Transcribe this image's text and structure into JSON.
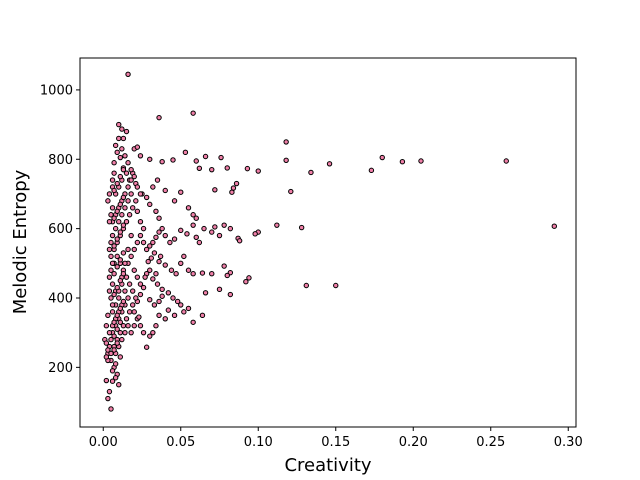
{
  "chart_data": {
    "type": "scatter",
    "title": "",
    "xlabel": "Creativity",
    "ylabel": "Melodic Entropy",
    "xlim": [
      -0.015,
      0.305
    ],
    "ylim": [
      28,
      1092
    ],
    "xticks": [
      0.0,
      0.05,
      0.1,
      0.15,
      0.2,
      0.25,
      0.3
    ],
    "xtick_labels": [
      "0.00",
      "0.05",
      "0.10",
      "0.15",
      "0.20",
      "0.25",
      "0.30"
    ],
    "yticks": [
      200,
      400,
      600,
      800,
      1000
    ],
    "ytick_labels": [
      "200",
      "400",
      "600",
      "800",
      "1000"
    ],
    "grid": false,
    "legend": "none",
    "marker_face_color": "#f07fa8",
    "marker_edge_color": "#000000",
    "points": [
      [
        0.016,
        1045
      ],
      [
        0.058,
        933
      ],
      [
        0.036,
        920
      ],
      [
        0.118,
        850
      ],
      [
        0.18,
        805
      ],
      [
        0.205,
        795
      ],
      [
        0.26,
        795
      ],
      [
        0.193,
        793
      ],
      [
        0.146,
        787
      ],
      [
        0.134,
        762
      ],
      [
        0.173,
        768
      ],
      [
        0.118,
        797
      ],
      [
        0.121,
        707
      ],
      [
        0.1,
        766
      ],
      [
        0.093,
        773
      ],
      [
        0.291,
        607
      ],
      [
        0.128,
        603
      ],
      [
        0.112,
        610
      ],
      [
        0.1,
        590
      ],
      [
        0.098,
        585
      ],
      [
        0.131,
        436
      ],
      [
        0.15,
        436
      ],
      [
        0.094,
        458
      ],
      [
        0.092,
        447
      ],
      [
        0.087,
        572
      ],
      [
        0.082,
        473
      ],
      [
        0.08,
        465
      ],
      [
        0.082,
        410
      ],
      [
        0.078,
        492
      ],
      [
        0.075,
        425
      ],
      [
        0.07,
        470
      ],
      [
        0.064,
        350
      ],
      [
        0.066,
        415
      ],
      [
        0.064,
        472
      ],
      [
        0.086,
        730
      ],
      [
        0.083,
        705
      ],
      [
        0.084,
        717
      ],
      [
        0.076,
        805
      ],
      [
        0.08,
        775
      ],
      [
        0.072,
        712
      ],
      [
        0.07,
        770
      ],
      [
        0.062,
        774
      ],
      [
        0.066,
        808
      ],
      [
        0.06,
        795
      ],
      [
        0.053,
        820
      ],
      [
        0.045,
        798
      ],
      [
        0.038,
        793
      ],
      [
        0.03,
        800
      ],
      [
        0.035,
        740
      ],
      [
        0.04,
        710
      ],
      [
        0.046,
        680
      ],
      [
        0.05,
        705
      ],
      [
        0.055,
        660
      ],
      [
        0.058,
        640
      ],
      [
        0.06,
        630
      ],
      [
        0.065,
        600
      ],
      [
        0.07,
        590
      ],
      [
        0.072,
        605
      ],
      [
        0.075,
        580
      ],
      [
        0.078,
        610
      ],
      [
        0.082,
        600
      ],
      [
        0.088,
        565
      ],
      [
        0.058,
        610
      ],
      [
        0.054,
        585
      ],
      [
        0.05,
        595
      ],
      [
        0.046,
        570
      ],
      [
        0.043,
        560
      ],
      [
        0.04,
        580
      ],
      [
        0.038,
        600
      ],
      [
        0.036,
        590
      ],
      [
        0.034,
        575
      ],
      [
        0.032,
        560
      ],
      [
        0.03,
        550
      ],
      [
        0.028,
        540
      ],
      [
        0.026,
        600
      ],
      [
        0.024,
        620
      ],
      [
        0.022,
        650
      ],
      [
        0.025,
        700
      ],
      [
        0.028,
        690
      ],
      [
        0.03,
        670
      ],
      [
        0.032,
        720
      ],
      [
        0.034,
        650
      ],
      [
        0.036,
        630
      ],
      [
        0.033,
        530
      ],
      [
        0.036,
        505
      ],
      [
        0.04,
        495
      ],
      [
        0.044,
        480
      ],
      [
        0.047,
        470
      ],
      [
        0.05,
        500
      ],
      [
        0.052,
        520
      ],
      [
        0.055,
        480
      ],
      [
        0.058,
        470
      ],
      [
        0.06,
        575
      ],
      [
        0.062,
        560
      ],
      [
        0.03,
        480
      ],
      [
        0.028,
        470
      ],
      [
        0.032,
        455
      ],
      [
        0.035,
        440
      ],
      [
        0.038,
        425
      ],
      [
        0.042,
        415
      ],
      [
        0.045,
        400
      ],
      [
        0.048,
        390
      ],
      [
        0.05,
        380
      ],
      [
        0.052,
        360
      ],
      [
        0.055,
        370
      ],
      [
        0.058,
        330
      ],
      [
        0.046,
        350
      ],
      [
        0.042,
        365
      ],
      [
        0.04,
        340
      ],
      [
        0.036,
        350
      ],
      [
        0.034,
        320
      ],
      [
        0.032,
        300
      ],
      [
        0.03,
        290
      ],
      [
        0.028,
        258
      ],
      [
        0.026,
        300
      ],
      [
        0.024,
        320
      ],
      [
        0.022,
        340
      ],
      [
        0.02,
        360
      ],
      [
        0.022,
        390
      ],
      [
        0.024,
        410
      ],
      [
        0.026,
        430
      ],
      [
        0.027,
        460
      ],
      [
        0.03,
        395
      ],
      [
        0.033,
        380
      ],
      [
        0.036,
        390
      ],
      [
        0.038,
        405
      ],
      [
        0.029,
        505
      ],
      [
        0.031,
        515
      ],
      [
        0.034,
        470
      ],
      [
        0.037,
        520
      ],
      [
        0.015,
        880
      ],
      [
        0.013,
        860
      ],
      [
        0.012,
        887
      ],
      [
        0.01,
        900
      ],
      [
        0.008,
        840
      ],
      [
        0.007,
        790
      ],
      [
        0.009,
        820
      ],
      [
        0.011,
        805
      ],
      [
        0.013,
        775
      ],
      [
        0.015,
        760
      ],
      [
        0.017,
        740
      ],
      [
        0.019,
        760
      ],
      [
        0.021,
        730
      ],
      [
        0.018,
        700
      ],
      [
        0.016,
        680
      ],
      [
        0.014,
        660
      ],
      [
        0.012,
        640
      ],
      [
        0.01,
        620
      ],
      [
        0.008,
        600
      ],
      [
        0.006,
        580
      ],
      [
        0.005,
        560
      ],
      [
        0.007,
        540
      ],
      [
        0.009,
        520
      ],
      [
        0.011,
        500
      ],
      [
        0.013,
        480
      ],
      [
        0.015,
        460
      ],
      [
        0.017,
        440
      ],
      [
        0.019,
        420
      ],
      [
        0.016,
        400
      ],
      [
        0.014,
        380
      ],
      [
        0.012,
        360
      ],
      [
        0.01,
        340
      ],
      [
        0.008,
        320
      ],
      [
        0.006,
        300
      ],
      [
        0.005,
        280
      ],
      [
        0.004,
        260
      ],
      [
        0.003,
        240
      ],
      [
        0.005,
        220
      ],
      [
        0.007,
        200
      ],
      [
        0.009,
        180
      ],
      [
        0.006,
        160
      ],
      [
        0.004,
        130
      ],
      [
        0.003,
        110
      ],
      [
        0.005,
        80
      ],
      [
        0.002,
        162
      ],
      [
        0.001,
        280
      ],
      [
        0.002,
        320
      ],
      [
        0.003,
        680
      ],
      [
        0.004,
        700
      ],
      [
        0.006,
        720
      ],
      [
        0.007,
        760
      ],
      [
        0.01,
        860
      ],
      [
        0.012,
        830
      ],
      [
        0.014,
        810
      ],
      [
        0.016,
        790
      ],
      [
        0.018,
        770
      ],
      [
        0.02,
        830
      ],
      [
        0.022,
        835
      ],
      [
        0.024,
        810
      ],
      [
        0.02,
        750
      ],
      [
        0.022,
        720
      ],
      [
        0.024,
        700
      ],
      [
        0.021,
        680
      ],
      [
        0.019,
        660
      ],
      [
        0.017,
        640
      ],
      [
        0.015,
        620
      ],
      [
        0.013,
        600
      ],
      [
        0.011,
        580
      ],
      [
        0.009,
        560
      ],
      [
        0.007,
        500
      ],
      [
        0.005,
        480
      ],
      [
        0.004,
        460
      ],
      [
        0.006,
        440
      ],
      [
        0.008,
        420
      ],
      [
        0.01,
        400
      ],
      [
        0.012,
        440
      ],
      [
        0.014,
        420
      ],
      [
        0.016,
        500
      ],
      [
        0.018,
        520
      ],
      [
        0.02,
        540
      ],
      [
        0.022,
        560
      ],
      [
        0.024,
        580
      ],
      [
        0.026,
        560
      ],
      [
        0.02,
        480
      ],
      [
        0.022,
        460
      ],
      [
        0.024,
        440
      ],
      [
        0.021,
        400
      ],
      [
        0.019,
        380
      ],
      [
        0.017,
        360
      ],
      [
        0.015,
        340
      ],
      [
        0.013,
        320
      ],
      [
        0.011,
        300
      ],
      [
        0.009,
        280
      ],
      [
        0.007,
        260
      ],
      [
        0.005,
        240
      ],
      [
        0.003,
        220
      ],
      [
        0.008,
        240
      ],
      [
        0.01,
        260
      ],
      [
        0.012,
        280
      ],
      [
        0.014,
        300
      ],
      [
        0.016,
        320
      ],
      [
        0.018,
        300
      ],
      [
        0.02,
        320
      ],
      [
        0.023,
        345
      ],
      [
        0.004,
        300
      ],
      [
        0.006,
        320
      ],
      [
        0.008,
        340
      ],
      [
        0.01,
        360
      ],
      [
        0.012,
        380
      ],
      [
        0.006,
        360
      ],
      [
        0.008,
        380
      ],
      [
        0.01,
        420
      ],
      [
        0.012,
        460
      ],
      [
        0.014,
        500
      ],
      [
        0.016,
        540
      ],
      [
        0.018,
        580
      ],
      [
        0.006,
        620
      ],
      [
        0.008,
        640
      ],
      [
        0.01,
        660
      ],
      [
        0.012,
        680
      ],
      [
        0.014,
        700
      ],
      [
        0.016,
        720
      ],
      [
        0.018,
        740
      ],
      [
        0.008,
        700
      ],
      [
        0.01,
        720
      ],
      [
        0.012,
        740
      ],
      [
        0.006,
        740
      ],
      [
        0.004,
        620
      ],
      [
        0.005,
        640
      ],
      [
        0.006,
        660
      ],
      [
        0.004,
        540
      ],
      [
        0.005,
        520
      ],
      [
        0.006,
        500
      ],
      [
        0.004,
        420
      ],
      [
        0.005,
        400
      ],
      [
        0.006,
        380
      ],
      [
        0.003,
        350
      ],
      [
        0.002,
        230
      ],
      [
        0.003,
        250
      ],
      [
        0.002,
        270
      ],
      [
        0.007,
        410
      ],
      [
        0.009,
        430
      ],
      [
        0.011,
        450
      ],
      [
        0.013,
        470
      ],
      [
        0.007,
        470
      ],
      [
        0.009,
        490
      ],
      [
        0.011,
        510
      ],
      [
        0.013,
        530
      ],
      [
        0.007,
        550
      ],
      [
        0.009,
        570
      ],
      [
        0.011,
        590
      ],
      [
        0.013,
        610
      ],
      [
        0.007,
        630
      ],
      [
        0.009,
        650
      ],
      [
        0.011,
        670
      ],
      [
        0.013,
        690
      ],
      [
        0.007,
        710
      ],
      [
        0.009,
        730
      ],
      [
        0.011,
        750
      ],
      [
        0.013,
        770
      ],
      [
        0.007,
        330
      ],
      [
        0.009,
        350
      ],
      [
        0.011,
        370
      ],
      [
        0.013,
        390
      ],
      [
        0.007,
        290
      ],
      [
        0.009,
        310
      ],
      [
        0.011,
        330
      ],
      [
        0.007,
        250
      ],
      [
        0.009,
        270
      ],
      [
        0.011,
        230
      ],
      [
        0.008,
        210
      ],
      [
        0.006,
        190
      ],
      [
        0.008,
        170
      ],
      [
        0.01,
        150
      ]
    ]
  }
}
